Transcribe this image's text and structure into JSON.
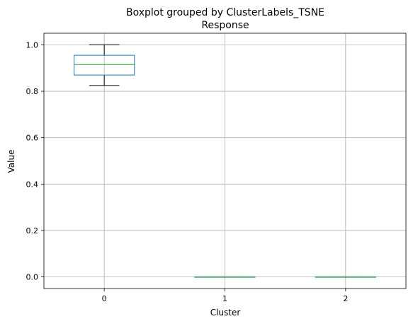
{
  "chart_data": {
    "type": "box",
    "suptitle": "Boxplot grouped by ClusterLabels_TSNE",
    "title": "Response",
    "xlabel": "Cluster",
    "ylabel": "Value",
    "ylim": [
      -0.05,
      1.05
    ],
    "yticks": [
      0.0,
      0.2,
      0.4,
      0.6,
      0.8,
      1.0
    ],
    "ytick_labels": [
      "0.0",
      "0.2",
      "0.4",
      "0.6",
      "0.8",
      "1.0"
    ],
    "grid": true,
    "categories": [
      "0",
      "1",
      "2"
    ],
    "boxes": [
      {
        "category": "0",
        "whisker_low": 0.825,
        "q1": 0.87,
        "median": 0.915,
        "q3": 0.955,
        "whisker_high": 1.0
      },
      {
        "category": "1",
        "whisker_low": 0.0,
        "q1": 0.0,
        "median": 0.0,
        "q3": 0.0,
        "whisker_high": 0.0
      },
      {
        "category": "2",
        "whisker_low": 0.0,
        "q1": 0.0,
        "median": 0.0,
        "q3": 0.0,
        "whisker_high": 0.0
      }
    ],
    "colors": {
      "box": "#1f77b4",
      "median": "#2ca02c",
      "whisker": "#000000",
      "grid": "#b0b0b0"
    }
  }
}
